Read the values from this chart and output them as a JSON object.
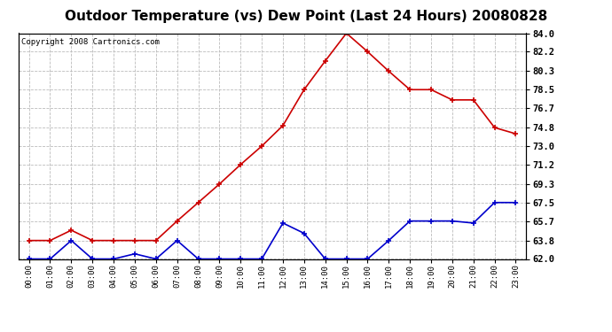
{
  "title": "Outdoor Temperature (vs) Dew Point (Last 24 Hours) 20080828",
  "copyright": "Copyright 2008 Cartronics.com",
  "hours": [
    "00:00",
    "01:00",
    "02:00",
    "03:00",
    "04:00",
    "05:00",
    "06:00",
    "07:00",
    "08:00",
    "09:00",
    "10:00",
    "11:00",
    "12:00",
    "13:00",
    "14:00",
    "15:00",
    "16:00",
    "17:00",
    "18:00",
    "19:00",
    "20:00",
    "21:00",
    "22:00",
    "23:00"
  ],
  "temp": [
    63.8,
    63.8,
    64.8,
    63.8,
    63.8,
    63.8,
    63.8,
    65.7,
    67.5,
    69.3,
    71.2,
    73.0,
    75.0,
    78.5,
    81.3,
    84.0,
    82.2,
    80.3,
    78.5,
    78.5,
    77.5,
    77.5,
    74.8,
    74.2
  ],
  "dew": [
    62.0,
    62.0,
    63.8,
    62.0,
    62.0,
    62.5,
    62.0,
    63.8,
    62.0,
    62.0,
    62.0,
    62.0,
    65.5,
    64.5,
    62.0,
    62.0,
    62.0,
    63.8,
    65.7,
    65.7,
    65.7,
    65.5,
    67.5,
    67.5
  ],
  "temp_color": "#cc0000",
  "dew_color": "#0000cc",
  "bg_color": "#ffffff",
  "plot_bg": "#ffffff",
  "grid_color": "#bbbbbb",
  "yticks": [
    62.0,
    63.8,
    65.7,
    67.5,
    69.3,
    71.2,
    73.0,
    74.8,
    76.7,
    78.5,
    80.3,
    82.2,
    84.0
  ],
  "ylim_min": 62.0,
  "ylim_max": 84.0,
  "title_fontsize": 11,
  "copyright_fontsize": 6.5
}
